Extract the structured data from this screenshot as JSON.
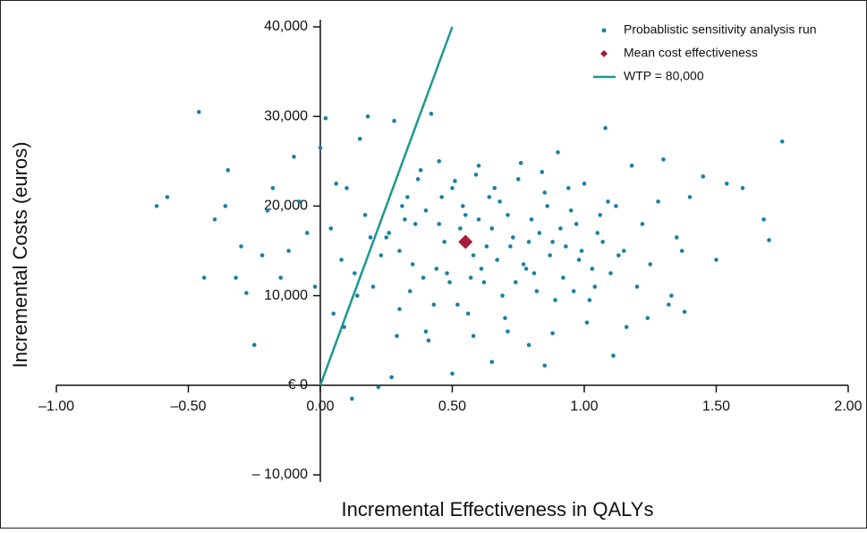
{
  "chart_data": {
    "type": "scatter",
    "xlabel": "Incremental Effectiveness in QALYs",
    "ylabel": "Incremental Costs (euros)",
    "xlim": [
      -1,
      2
    ],
    "ylim": [
      -10000,
      40000
    ],
    "xticks": [
      {
        "value": -1,
        "label": "–1.00"
      },
      {
        "value": -0.5,
        "label": "–0.50"
      },
      {
        "value": 0,
        "label": "0.00"
      },
      {
        "value": 0.5,
        "label": "0.50"
      },
      {
        "value": 1,
        "label": "1.00"
      },
      {
        "value": 1.5,
        "label": "1.50"
      },
      {
        "value": 2,
        "label": "2.00"
      }
    ],
    "yticks": [
      {
        "value": -10000,
        "label": "– 10,000"
      },
      {
        "value": 0,
        "label": "€ 0"
      },
      {
        "value": 10000,
        "label": "10,000"
      },
      {
        "value": 20000,
        "label": "20,000"
      },
      {
        "value": 30000,
        "label": "30,000"
      },
      {
        "value": 40000,
        "label": "40,000"
      }
    ],
    "legend": "top-right",
    "series": [
      {
        "name": "Probablistic sensitivity analysis run",
        "color": "#1b7fa6",
        "marker": "dot",
        "x": [
          -0.46,
          -0.62,
          -0.58,
          1.75,
          1.7,
          1.68,
          1.6,
          1.54,
          0.12,
          0.22,
          0.27,
          0.5,
          0.85,
          0.65,
          1.11,
          -0.4,
          -0.35,
          -0.3,
          -0.28,
          -0.25,
          -0.2,
          -0.15,
          -0.1,
          -0.05,
          0.02,
          0.05,
          0.08,
          0.1,
          0.15,
          0.18,
          0.2,
          0.25,
          0.28,
          0.3,
          0.33,
          0.35,
          0.38,
          0.4,
          0.42,
          0.45,
          0.48,
          0.5,
          0.52,
          0.55,
          0.58,
          0.6,
          0.62,
          0.65,
          0.68,
          0.7,
          0.72,
          0.75,
          0.78,
          0.8,
          0.82,
          0.85,
          0.88,
          0.9,
          0.92,
          0.95,
          0.98,
          1.0,
          1.02,
          1.05,
          1.08,
          1.1,
          1.12,
          1.15,
          1.18,
          1.2,
          1.22,
          1.25,
          1.28,
          1.3,
          1.32,
          1.35,
          1.38,
          1.4,
          1.45,
          1.5,
          0.3,
          0.36,
          0.44,
          0.47,
          0.53,
          0.57,
          0.63,
          0.67,
          0.73,
          0.77,
          0.83,
          0.87,
          0.93,
          0.97,
          1.03,
          1.07,
          0.4,
          0.46,
          0.54,
          0.6,
          0.66,
          0.71,
          0.79,
          0.86,
          0.91,
          0.99,
          1.06,
          1.13,
          0.34,
          0.39,
          0.43,
          0.49,
          0.56,
          0.61,
          0.69,
          0.74,
          0.81,
          0.89,
          0.96,
          1.04,
          0.31,
          0.37,
          0.45,
          0.51,
          0.59,
          0.64,
          0.76,
          0.84,
          0.94,
          1.09,
          -0.12,
          -0.08,
          -0.02,
          0.0,
          0.04,
          0.06,
          0.13,
          0.17,
          0.23,
          0.26,
          0.41,
          0.58,
          0.71,
          0.79,
          0.88,
          1.01,
          1.16,
          1.24,
          1.33,
          1.37,
          -0.22,
          -0.18,
          -0.32,
          -0.36,
          -0.44,
          0.09,
          0.14,
          0.19,
          0.29,
          0.32
        ],
        "values": [
          30500,
          20000,
          21000,
          27200,
          16200,
          18500,
          22000,
          22500,
          -1500,
          -200,
          900,
          1300,
          2200,
          2600,
          3300,
          18500,
          24000,
          15500,
          10300,
          4500,
          19500,
          12000,
          25500,
          17000,
          29800,
          8000,
          14000,
          22000,
          27500,
          30000,
          11000,
          16500,
          29500,
          8500,
          21000,
          13500,
          24000,
          6000,
          30300,
          18000,
          12500,
          22000,
          9000,
          19000,
          14500,
          24500,
          11500,
          17500,
          20500,
          7500,
          15500,
          23000,
          13000,
          18500,
          10500,
          21500,
          16000,
          26000,
          12000,
          19500,
          14000,
          22500,
          9500,
          17000,
          28700,
          12500,
          20000,
          15000,
          24500,
          11000,
          18000,
          13500,
          20500,
          25200,
          9000,
          16500,
          8200,
          21000,
          23300,
          14000,
          15000,
          18000,
          13000,
          16000,
          17500,
          12000,
          15500,
          14000,
          16500,
          13500,
          17000,
          14500,
          15500,
          18000,
          13000,
          16000,
          19500,
          21000,
          20000,
          18500,
          22000,
          19000,
          16000,
          20000,
          17500,
          15000,
          19000,
          14500,
          10500,
          12000,
          9000,
          11500,
          8000,
          13000,
          10000,
          11500,
          12500,
          9500,
          10500,
          11000,
          20000,
          23000,
          25000,
          22800,
          23500,
          21000,
          24800,
          23800,
          22000,
          20500,
          15000,
          20500,
          11000,
          26500,
          17500,
          22500,
          12500,
          19000,
          14500,
          17000,
          5000,
          5500,
          6000,
          4500,
          5800,
          7000,
          6500,
          7500,
          10000,
          15000,
          14500,
          22000,
          12000,
          20000,
          12000,
          6500,
          10000,
          16500,
          5500,
          18500
        ]
      },
      {
        "name": "Mean cost effectiveness",
        "color": "#a61d3c",
        "marker": "diamond",
        "x": [
          0.55
        ],
        "values": [
          16000
        ]
      },
      {
        "name": "WTP = 80,000",
        "color": "#1a9a8c",
        "marker": "line",
        "x": [
          0,
          0.5
        ],
        "values": [
          0,
          40000
        ]
      }
    ]
  }
}
